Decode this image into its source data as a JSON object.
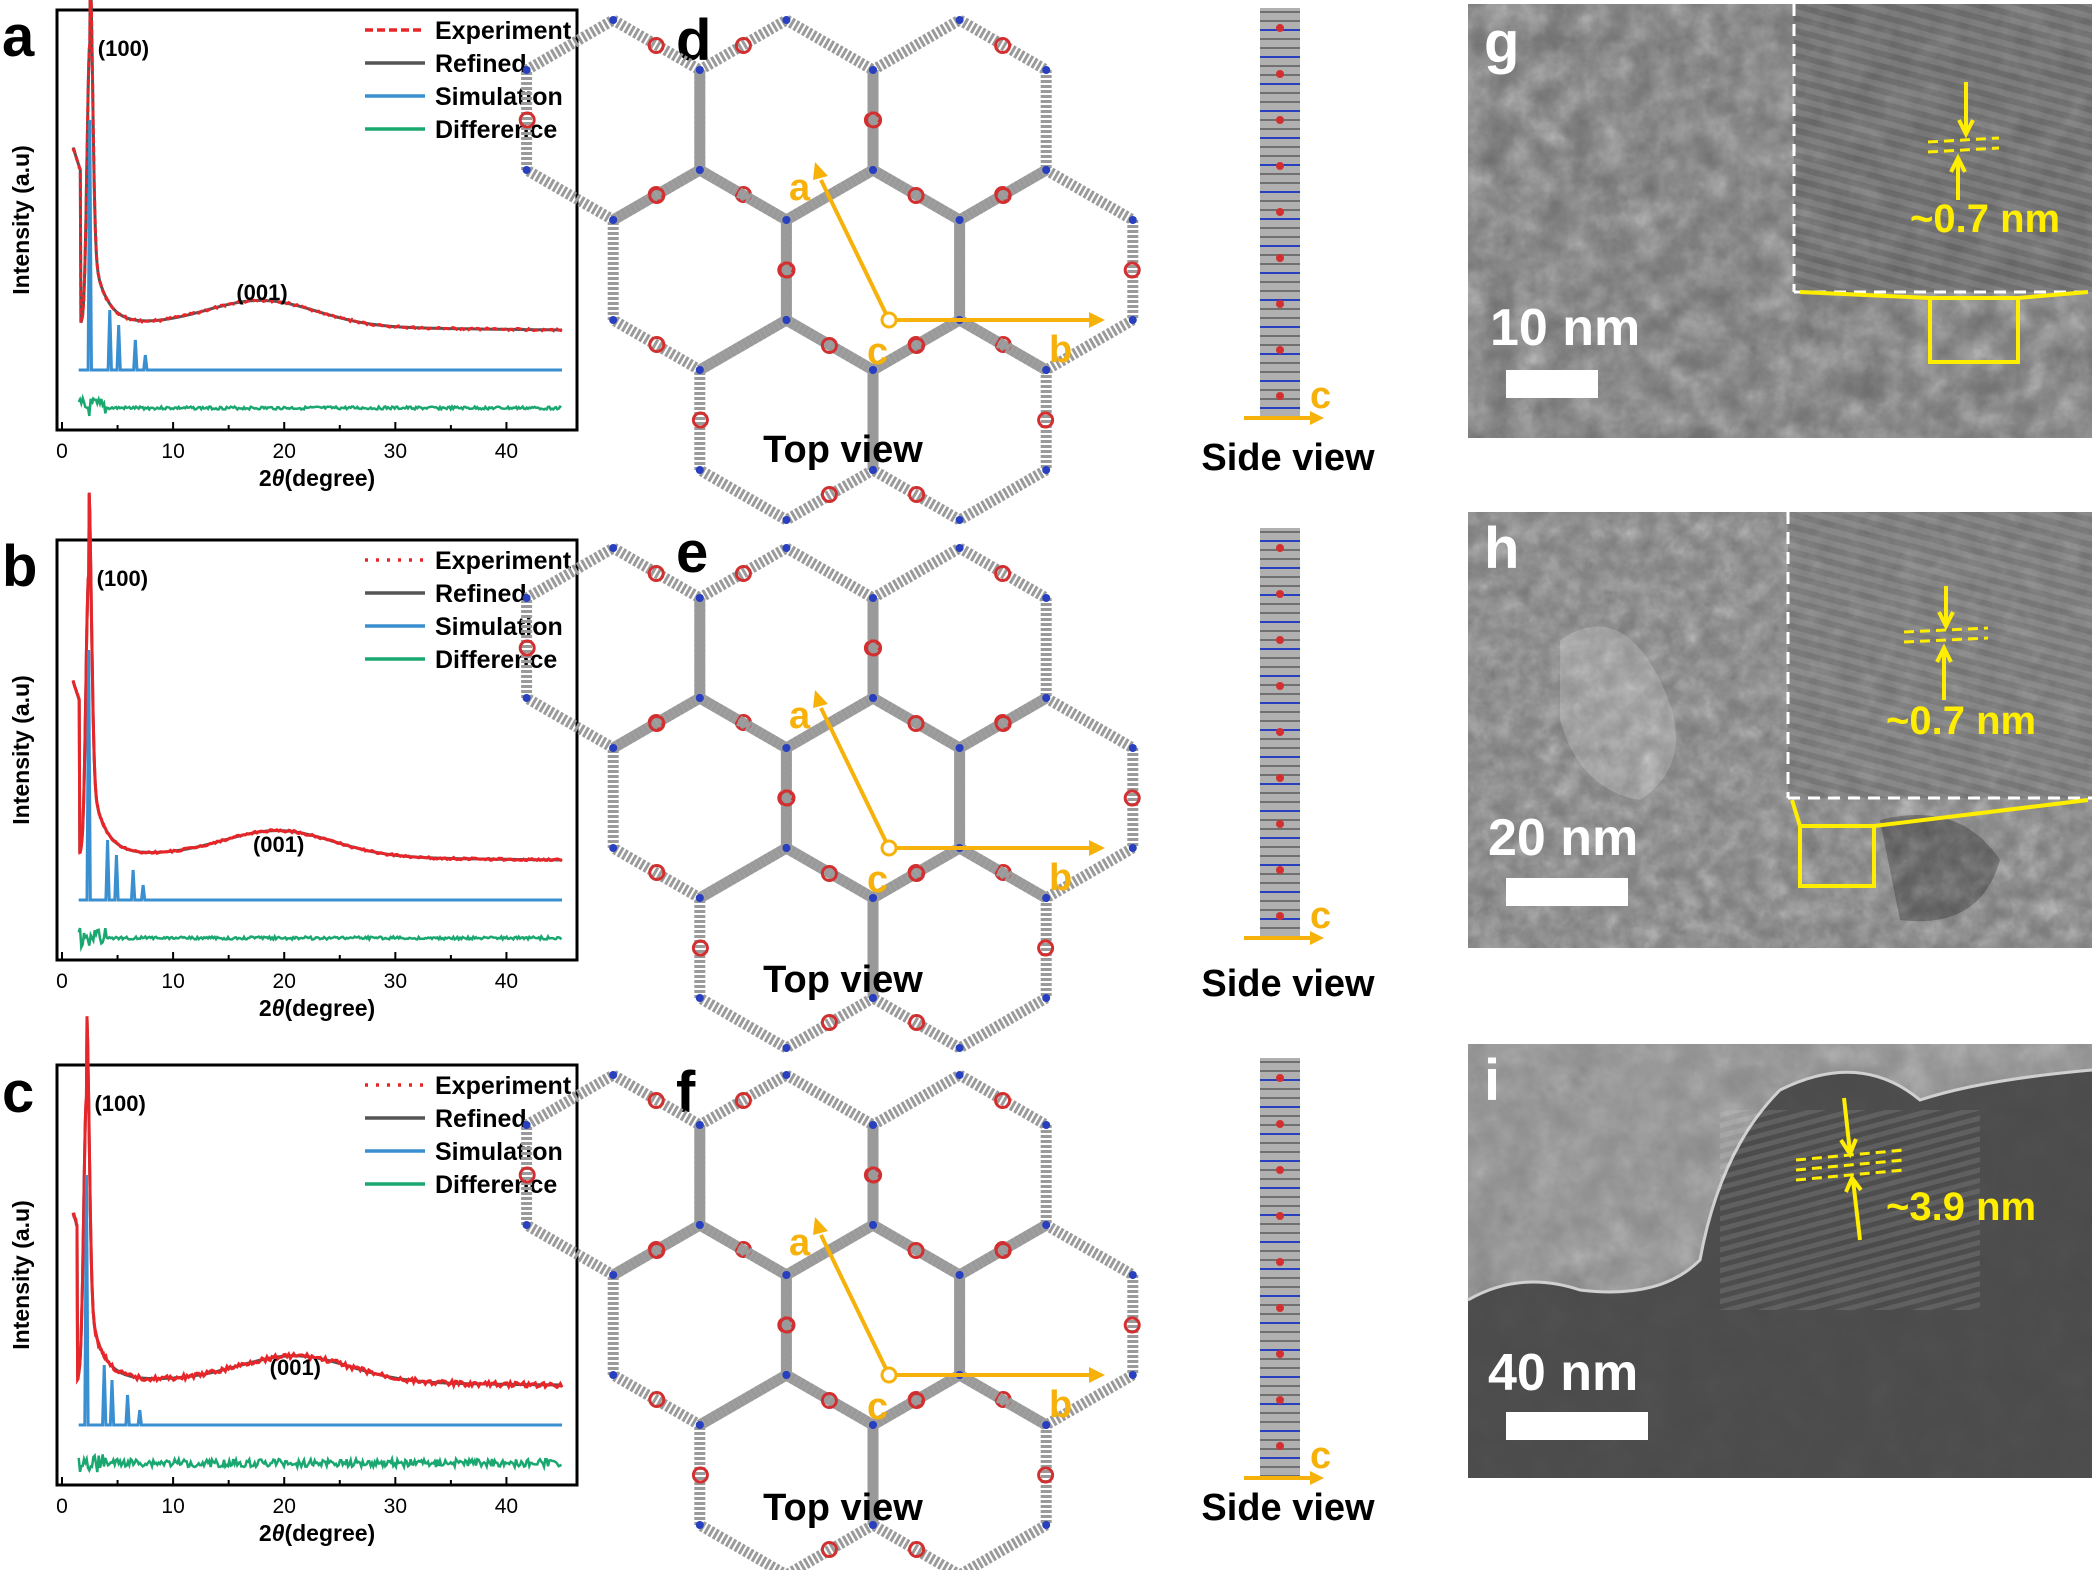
{
  "panel_labels": [
    "a",
    "b",
    "c",
    "d",
    "e",
    "f",
    "g",
    "h",
    "i"
  ],
  "xrd": {
    "x_label_prefix": "2",
    "x_label_theta": "θ",
    "x_label_unit": "(degree)",
    "y_label": "Intensity (a.u)",
    "x_ticks": [
      "0",
      "10",
      "20",
      "30",
      "40"
    ],
    "legend": [
      "Experiment",
      "Refined",
      "Simulation",
      "Difference"
    ],
    "colors": {
      "experiment": "#e8262a",
      "refined": "#555555",
      "simulation": "#3a8fd0",
      "difference": "#1aa870"
    }
  },
  "chart_data": [
    {
      "type": "line",
      "panel": "a",
      "xlim": [
        0,
        45
      ],
      "peaks": [
        {
          "label": "(100)",
          "x": 2.5
        },
        {
          "label": "(001)",
          "x": 18
        }
      ],
      "sim_peaks": [
        2.5,
        4.3,
        5.1,
        6.6,
        7.5
      ],
      "series": [
        {
          "name": "Experiment"
        },
        {
          "name": "Refined"
        },
        {
          "name": "Simulation"
        },
        {
          "name": "Difference"
        }
      ]
    },
    {
      "type": "line",
      "panel": "b",
      "xlim": [
        0,
        45
      ],
      "peaks": [
        {
          "label": "(100)",
          "x": 2.4
        },
        {
          "label": "(001)",
          "x": 19.5
        }
      ],
      "sim_peaks": [
        2.4,
        4.1,
        4.9,
        6.4,
        7.3
      ],
      "series": [
        {
          "name": "Experiment"
        },
        {
          "name": "Refined"
        },
        {
          "name": "Simulation"
        },
        {
          "name": "Difference"
        }
      ]
    },
    {
      "type": "line",
      "panel": "c",
      "xlim": [
        0,
        45
      ],
      "peaks": [
        {
          "label": "(100)",
          "x": 2.2
        },
        {
          "label": "(001)",
          "x": 21
        }
      ],
      "sim_peaks": [
        2.2,
        3.8,
        4.5,
        5.9,
        7.0
      ],
      "series": [
        {
          "name": "Experiment"
        },
        {
          "name": "Refined"
        },
        {
          "name": "Simulation"
        },
        {
          "name": "Difference"
        }
      ]
    }
  ],
  "structure": {
    "top_view_label": "Top view",
    "side_view_label": "Side view",
    "axis_a": "a",
    "axis_b": "b",
    "axis_c": "c",
    "axis_color": "#f6b10a"
  },
  "tem": {
    "g": {
      "scale": "10 nm",
      "spacing": "~0.7 nm"
    },
    "h": {
      "scale": "20 nm",
      "spacing": "~0.7 nm"
    },
    "i": {
      "scale": "40 nm",
      "spacing": "~3.9 nm"
    },
    "annotation_color": "#ffee00"
  }
}
